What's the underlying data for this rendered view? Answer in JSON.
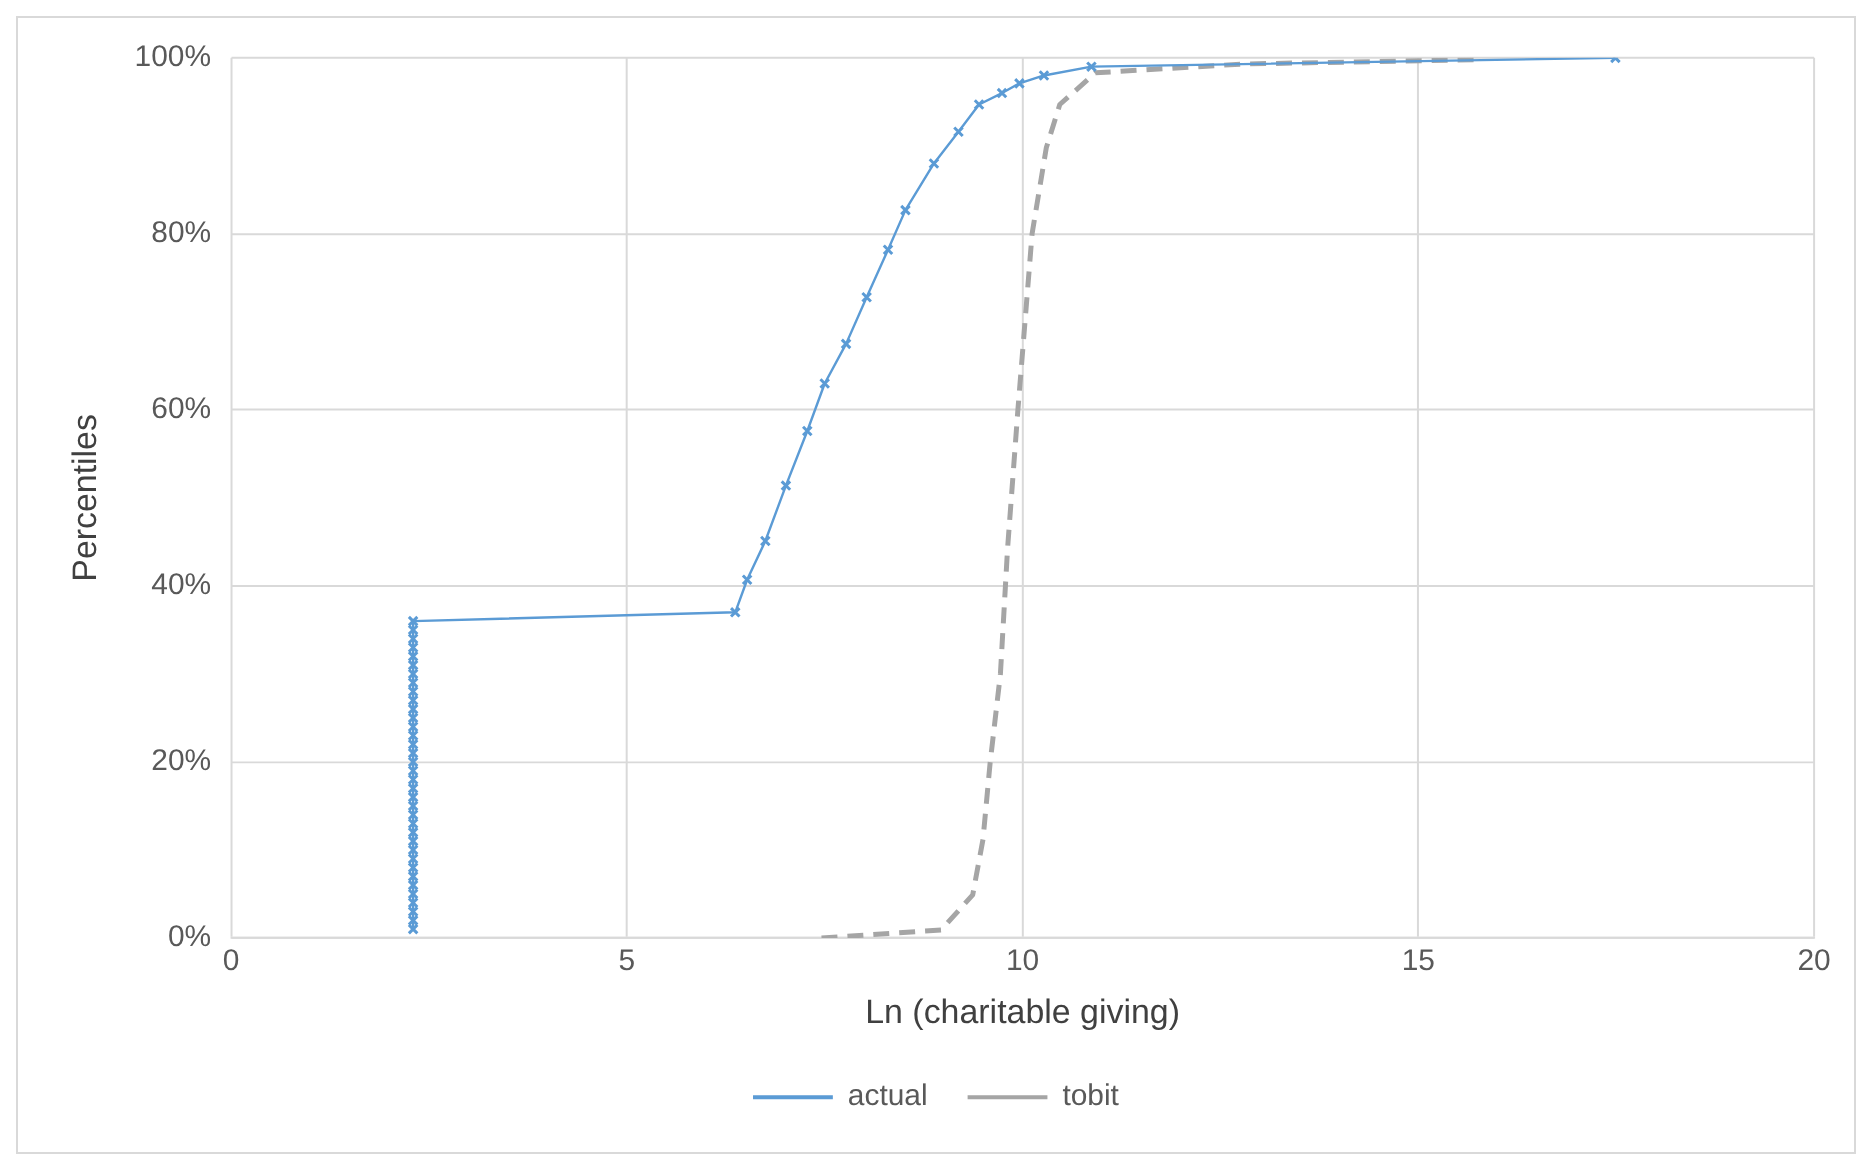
{
  "chart_data": {
    "type": "line",
    "xlabel": "Ln (charitable giving)",
    "ylabel": "Percentiles",
    "xlim": [
      0,
      20
    ],
    "xticks": [
      0,
      5,
      10,
      15,
      20
    ],
    "ylim": [
      0,
      100
    ],
    "yticks": [
      {
        "value": 0,
        "label": "0%"
      },
      {
        "value": 20,
        "label": "20%"
      },
      {
        "value": 40,
        "label": "40%"
      },
      {
        "value": 60,
        "label": "60%"
      },
      {
        "value": 80,
        "label": "80%"
      },
      {
        "value": 100,
        "label": "100%"
      }
    ],
    "grid": true,
    "legend": "bottom",
    "series": [
      {
        "name": "actual",
        "color": "#5b9bd5",
        "marker": "cross",
        "line_style": "solid",
        "x": [
          2.3,
          2.3,
          2.3,
          2.3,
          2.3,
          2.3,
          2.3,
          2.3,
          2.3,
          2.3,
          2.3,
          2.3,
          2.3,
          2.3,
          2.3,
          2.3,
          2.3,
          2.3,
          2.3,
          2.3,
          2.3,
          2.3,
          2.3,
          2.3,
          2.3,
          2.3,
          2.3,
          2.3,
          2.3,
          2.3,
          2.3,
          2.3,
          2.3,
          2.3,
          2.3,
          2.3,
          6.37,
          6.52,
          6.75,
          7.01,
          7.28,
          7.5,
          7.77,
          8.03,
          8.3,
          8.52,
          8.88,
          9.19,
          9.45,
          9.74,
          9.96,
          10.27,
          10.87,
          17.49
        ],
        "values": [
          1,
          2,
          3,
          4,
          5,
          6,
          7,
          8,
          9,
          10,
          11,
          12,
          13,
          14,
          15,
          16,
          17,
          18,
          19,
          20,
          21,
          22,
          23,
          24,
          25,
          26,
          27,
          28,
          29,
          30,
          31,
          32,
          33,
          34,
          35,
          36,
          37,
          40.7,
          45.1,
          51.4,
          57.6,
          63,
          67.5,
          72.8,
          78.2,
          82.7,
          88,
          91.6,
          94.7,
          96,
          97.1,
          98,
          99,
          100
        ]
      },
      {
        "name": "tobit",
        "color": "#a5a5a5",
        "marker": "none",
        "line_style": "dashed",
        "x": [
          7.46,
          8.97,
          9.37,
          9.5,
          9.59,
          9.72,
          9.81,
          9.94,
          10.12,
          10.3,
          10.47,
          10.92,
          12.78,
          15.8
        ],
        "values": [
          0,
          0.9,
          4.9,
          11.2,
          19.9,
          30,
          44.2,
          59.9,
          80,
          89.8,
          94.7,
          98.3,
          99.3,
          99.8
        ]
      }
    ]
  }
}
